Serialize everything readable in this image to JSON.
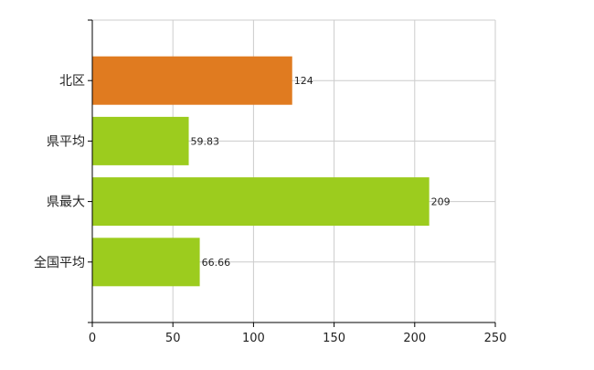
{
  "chart_data": {
    "type": "bar",
    "orientation": "horizontal",
    "categories": [
      "北区",
      "県平均",
      "県最大",
      "全国平均"
    ],
    "values": [
      124,
      59.83,
      209,
      66.66
    ],
    "value_labels": [
      "124",
      "59.83",
      "209",
      "66.66"
    ],
    "xlim": [
      0,
      250
    ],
    "xticks": [
      0,
      50,
      100,
      150,
      200,
      250
    ],
    "xtick_labels": [
      "0",
      "50",
      "100",
      "150",
      "200",
      "250"
    ],
    "grid": true,
    "bar_colors": [
      "#e07b20",
      "#9ccc1e",
      "#9ccc1e",
      "#9ccc1e"
    ],
    "grid_color": "#cccccc",
    "axis_color": "#000000"
  }
}
